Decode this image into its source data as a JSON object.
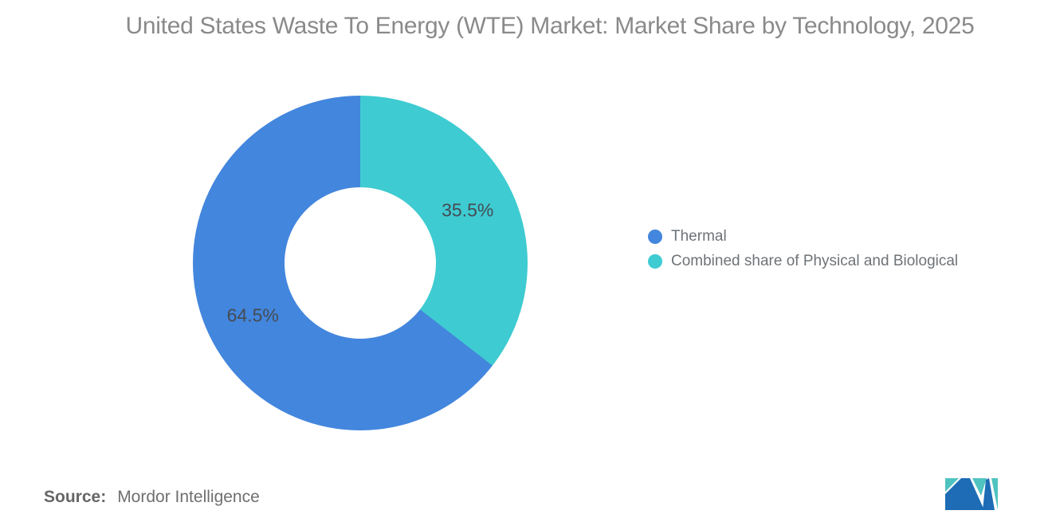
{
  "title": "United States Waste To Energy (WTE) Market: Market Share by Technology, 2025",
  "chart_data": {
    "type": "pie",
    "subtype": "donut",
    "title": "United States Waste To Energy (WTE) Market: Market Share by Technology, 2025",
    "donut_hole_ratio": 0.45,
    "start_angle_deg": 0,
    "direction": "clockwise",
    "slices": [
      {
        "label": "Combined share of Physical and Biological",
        "value": 35.5,
        "display": "35.5%",
        "color": "#3ecbd1"
      },
      {
        "label": "Thermal",
        "value": 64.5,
        "display": "64.5%",
        "color": "#4386dd"
      }
    ],
    "legend_position": "right"
  },
  "legend": {
    "items": [
      {
        "label": "Thermal",
        "color": "#4386dd"
      },
      {
        "label": "Combined share of Physical and Biological",
        "color": "#3ecbd1"
      }
    ]
  },
  "source": {
    "prefix": "Source:",
    "name": "Mordor Intelligence"
  },
  "logo": {
    "name": "mordor-intelligence-logo",
    "colors": {
      "blue": "#1d6cb5",
      "teal": "#4fc3c0"
    }
  }
}
